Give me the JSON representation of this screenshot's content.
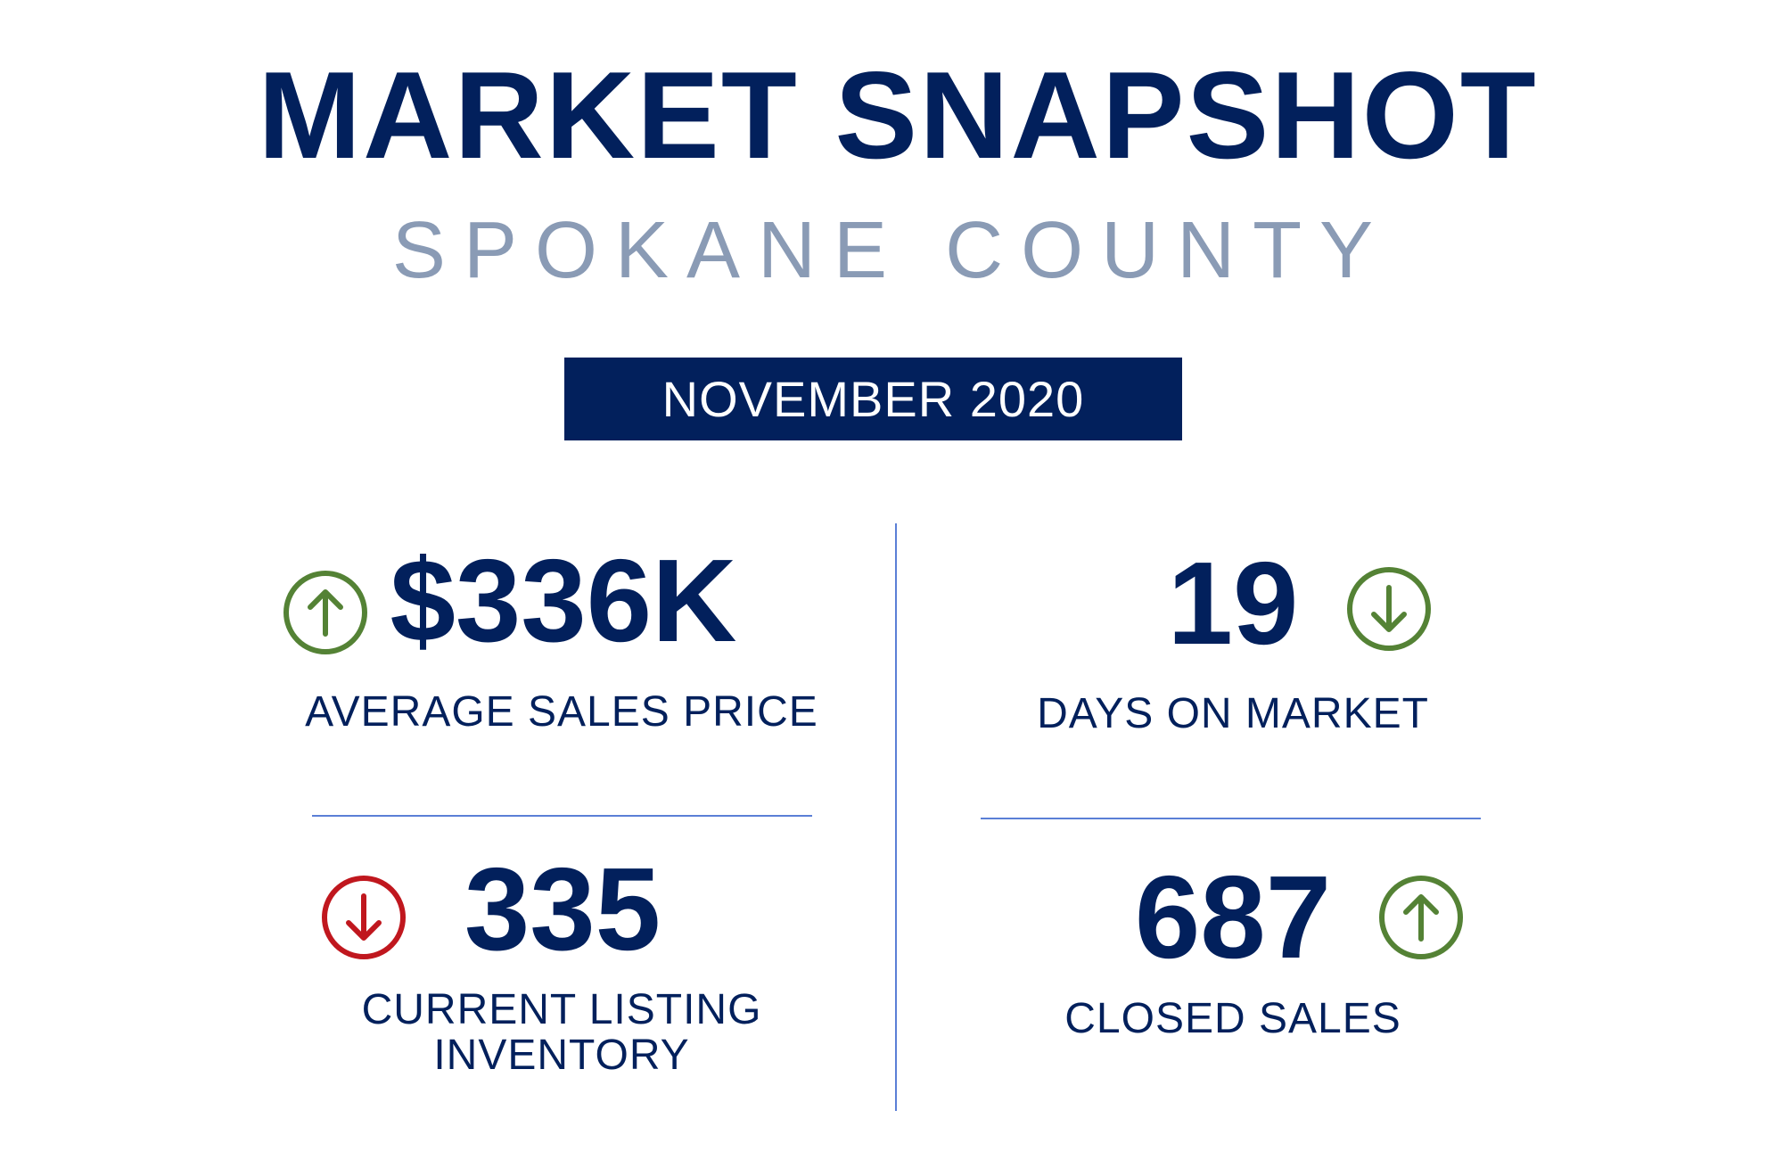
{
  "header": {
    "title": "MARKET SNAPSHOT",
    "subtitle": "SPOKANE COUNTY",
    "period": "NOVEMBER 2020"
  },
  "colors": {
    "navy": "#02205c",
    "subtitle_gray": "#8a9bb5",
    "divider_blue": "#5b7fd6",
    "up_green": "#548235",
    "down_green": "#548235",
    "down_red": "#c0171e"
  },
  "metrics": [
    {
      "value": "$336K",
      "label": "AVERAGE SALES PRICE",
      "trend": "up",
      "trend_icon": "arrow-up-circle-icon",
      "trend_color": "#548235"
    },
    {
      "value": "19",
      "label": "DAYS ON MARKET",
      "trend": "down",
      "trend_icon": "arrow-down-circle-icon",
      "trend_color": "#548235"
    },
    {
      "value": "335",
      "label_line1": "CURRENT LISTING",
      "label_line2": "INVENTORY",
      "trend": "down",
      "trend_icon": "arrow-down-circle-icon",
      "trend_color": "#c0171e"
    },
    {
      "value": "687",
      "label": "CLOSED SALES",
      "trend": "up",
      "trend_icon": "arrow-up-circle-icon",
      "trend_color": "#548235"
    }
  ]
}
